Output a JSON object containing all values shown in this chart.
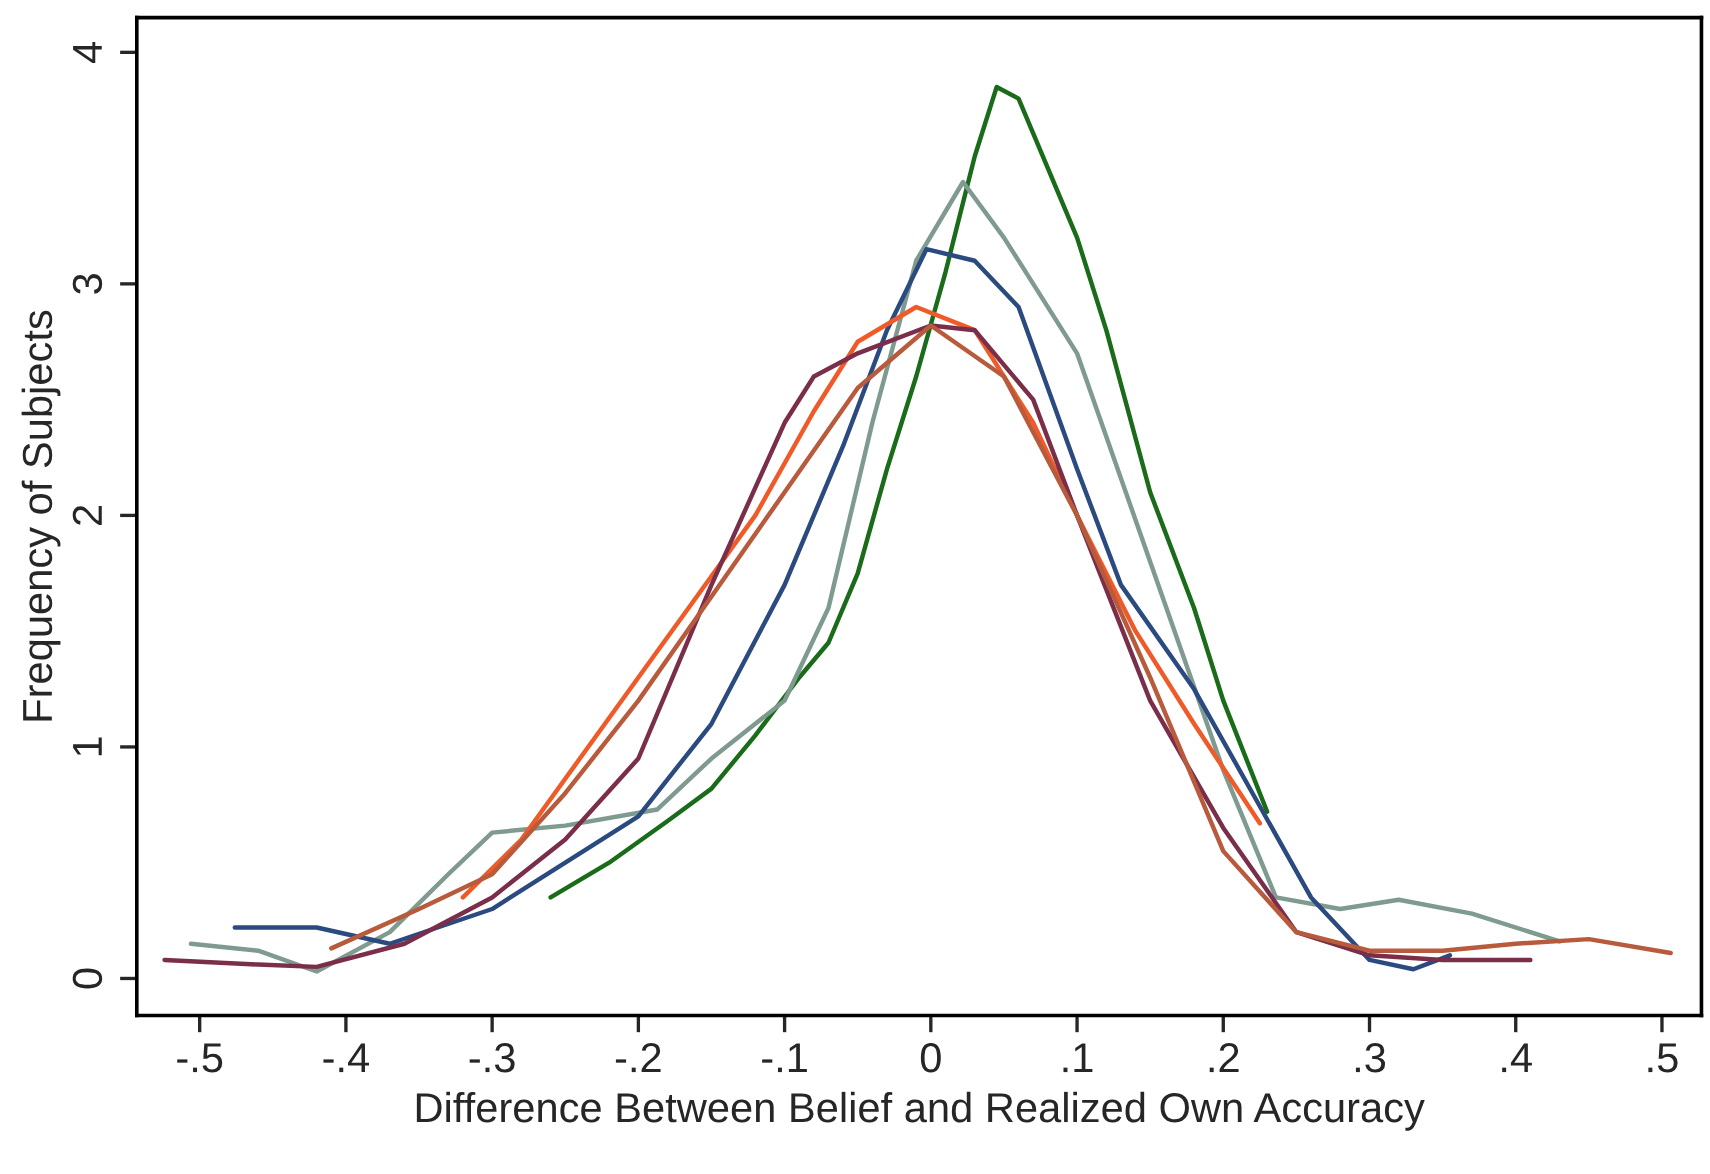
{
  "chart_data": {
    "type": "line",
    "xlabel": "Difference Between Belief and Realized Own Accuracy",
    "ylabel": "Frequency of Subjects",
    "xlim": [
      -0.543,
      0.527
    ],
    "ylim": [
      -0.16,
      4.15
    ],
    "xticks": [
      {
        "value": -0.5,
        "label": "-.5"
      },
      {
        "value": -0.4,
        "label": "-.4"
      },
      {
        "value": -0.3,
        "label": "-.3"
      },
      {
        "value": -0.2,
        "label": "-.2"
      },
      {
        "value": -0.1,
        "label": "-.1"
      },
      0,
      {
        "value": 0.1,
        "label": ".1"
      },
      {
        "value": 0.2,
        "label": ".2"
      },
      {
        "value": 0.3,
        "label": ".3"
      },
      {
        "value": 0.4,
        "label": ".4"
      },
      {
        "value": 0.5,
        "label": ".5"
      }
    ],
    "yticks": [
      0,
      1,
      2,
      3,
      4
    ],
    "grid": false,
    "marker": "none",
    "line_style": "solid",
    "series": [
      {
        "color": "#1a6b1a",
        "x": [
          -0.26,
          -0.22,
          -0.18,
          -0.15,
          -0.12,
          -0.09,
          -0.07,
          -0.05,
          -0.03,
          -0.01,
          0.01,
          0.03,
          0.045,
          0.06,
          0.07,
          0.1,
          0.12,
          0.15,
          0.18,
          0.2,
          0.23
        ],
        "values": [
          0.35,
          0.5,
          0.68,
          0.82,
          1.05,
          1.3,
          1.45,
          1.75,
          2.2,
          2.6,
          3.05,
          3.55,
          3.85,
          3.8,
          3.65,
          3.2,
          2.8,
          2.1,
          1.6,
          1.2,
          0.72
        ]
      },
      {
        "color": "#7f9a8f",
        "x": [
          -0.506,
          -0.46,
          -0.42,
          -0.37,
          -0.33,
          -0.3,
          -0.25,
          -0.187,
          -0.15,
          -0.1,
          -0.07,
          -0.04,
          -0.01,
          0.022,
          0.05,
          0.1,
          0.15,
          0.2,
          0.236,
          0.28,
          0.32,
          0.37,
          0.43
        ],
        "values": [
          0.15,
          0.12,
          0.03,
          0.2,
          0.45,
          0.63,
          0.66,
          0.73,
          0.95,
          1.2,
          1.6,
          2.4,
          3.1,
          3.44,
          3.2,
          2.7,
          1.8,
          0.9,
          0.35,
          0.3,
          0.34,
          0.28,
          0.16
        ]
      },
      {
        "color": "#2b4a7f",
        "x": [
          -0.476,
          -0.42,
          -0.37,
          -0.3,
          -0.2,
          -0.15,
          -0.1,
          -0.06,
          -0.03,
          -0.003,
          0.03,
          0.06,
          0.1,
          0.13,
          0.18,
          0.22,
          0.26,
          0.3,
          0.33,
          0.355
        ],
        "values": [
          0.22,
          0.22,
          0.15,
          0.3,
          0.7,
          1.1,
          1.7,
          2.3,
          2.8,
          3.15,
          3.1,
          2.9,
          2.2,
          1.7,
          1.25,
          0.8,
          0.35,
          0.08,
          0.04,
          0.1
        ]
      },
      {
        "color": "#f05a28",
        "x": [
          -0.32,
          -0.28,
          -0.24,
          -0.2,
          -0.16,
          -0.12,
          -0.08,
          -0.05,
          -0.01,
          0.03,
          0.07,
          0.1,
          0.14,
          0.18,
          0.225
        ],
        "values": [
          0.35,
          0.6,
          0.95,
          1.3,
          1.65,
          2.0,
          2.45,
          2.75,
          2.9,
          2.8,
          2.4,
          2.0,
          1.5,
          1.1,
          0.67
        ]
      },
      {
        "color": "#7a2e4a",
        "x": [
          -0.524,
          -0.46,
          -0.42,
          -0.36,
          -0.3,
          -0.25,
          -0.2,
          -0.15,
          -0.1,
          -0.08,
          -0.05,
          0,
          0.03,
          0.07,
          0.1,
          0.15,
          0.2,
          0.25,
          0.3,
          0.35,
          0.41
        ],
        "values": [
          0.08,
          0.06,
          0.05,
          0.15,
          0.35,
          0.6,
          0.95,
          1.7,
          2.4,
          2.6,
          2.7,
          2.82,
          2.8,
          2.5,
          2.0,
          1.2,
          0.65,
          0.2,
          0.1,
          0.08,
          0.08
        ]
      },
      {
        "color": "#b85a3c",
        "x": [
          -0.41,
          -0.35,
          -0.3,
          -0.25,
          -0.2,
          -0.15,
          -0.1,
          -0.05,
          0,
          0.05,
          0.1,
          0.15,
          0.2,
          0.25,
          0.3,
          0.35,
          0.4,
          0.45,
          0.506
        ],
        "values": [
          0.13,
          0.3,
          0.45,
          0.8,
          1.2,
          1.65,
          2.1,
          2.55,
          2.82,
          2.6,
          2.0,
          1.3,
          0.55,
          0.2,
          0.12,
          0.12,
          0.15,
          0.17,
          0.11
        ]
      }
    ]
  }
}
